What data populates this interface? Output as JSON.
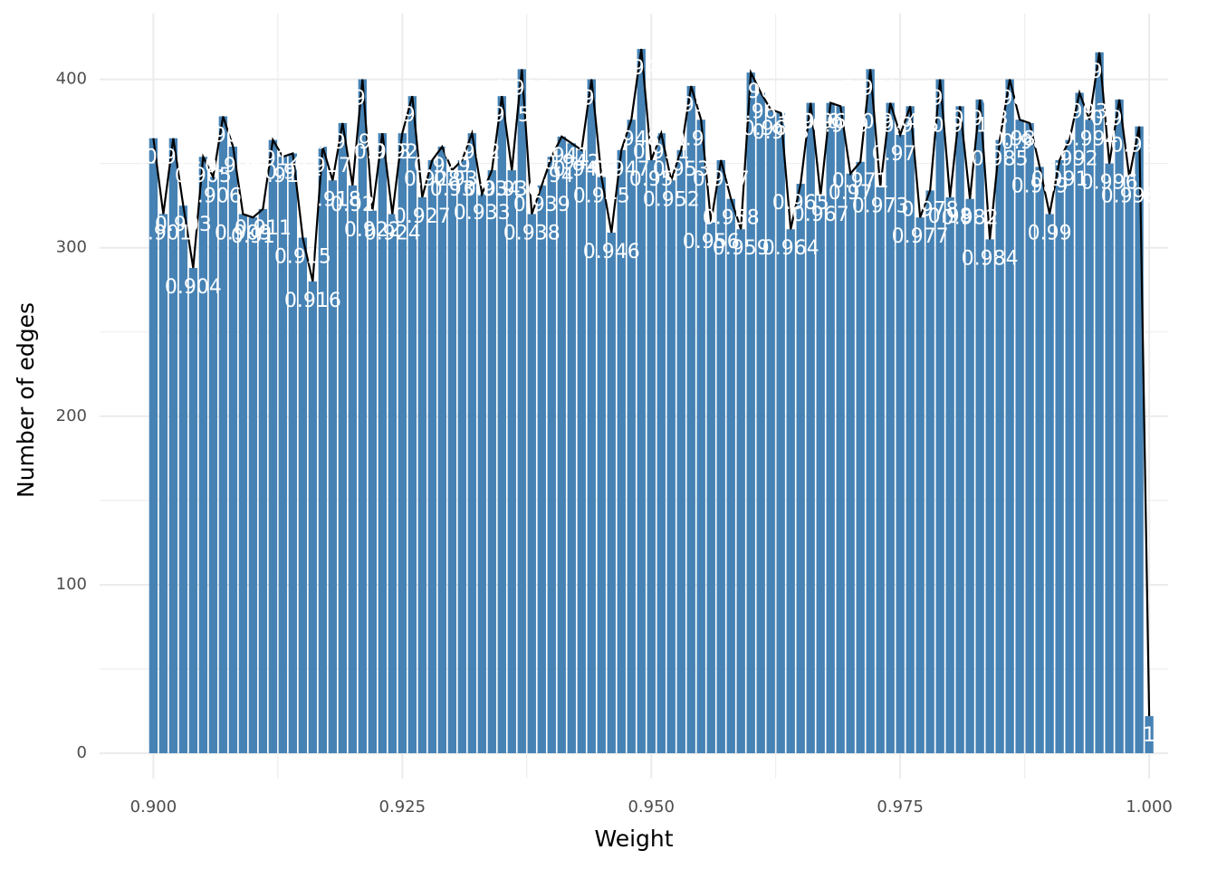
{
  "chart_data": {
    "type": "bar",
    "x_label": "Weight",
    "y_label": "Number of edges",
    "x": [
      0.9,
      0.901,
      0.902,
      0.903,
      0.904,
      0.905,
      0.906,
      0.907,
      0.908,
      0.909,
      0.91,
      0.911,
      0.912,
      0.913,
      0.914,
      0.915,
      0.916,
      0.917,
      0.918,
      0.919,
      0.92,
      0.921,
      0.922,
      0.923,
      0.924,
      0.925,
      0.926,
      0.927,
      0.928,
      0.929,
      0.93,
      0.931,
      0.932,
      0.933,
      0.934,
      0.935,
      0.936,
      0.937,
      0.938,
      0.939,
      0.94,
      0.941,
      0.942,
      0.943,
      0.944,
      0.945,
      0.946,
      0.947,
      0.948,
      0.949,
      0.95,
      0.951,
      0.952,
      0.953,
      0.954,
      0.955,
      0.956,
      0.957,
      0.958,
      0.959,
      0.96,
      0.961,
      0.962,
      0.963,
      0.964,
      0.965,
      0.966,
      0.967,
      0.968,
      0.969,
      0.97,
      0.971,
      0.972,
      0.973,
      0.974,
      0.975,
      0.976,
      0.977,
      0.978,
      0.979,
      0.98,
      0.981,
      0.982,
      0.983,
      0.984,
      0.985,
      0.986,
      0.987,
      0.988,
      0.989,
      0.99,
      0.991,
      0.992,
      0.993,
      0.994,
      0.995,
      0.996,
      0.997,
      0.998,
      0.999,
      1
    ],
    "values": [
      365,
      320,
      365,
      325,
      288,
      354,
      342,
      378,
      360,
      320,
      318,
      323,
      364,
      354,
      356,
      306,
      280,
      360,
      340,
      374,
      337,
      400,
      322,
      368,
      320,
      368,
      390,
      330,
      352,
      360,
      346,
      352,
      368,
      332,
      346,
      390,
      346,
      406,
      320,
      337,
      354,
      366,
      362,
      358,
      400,
      342,
      309,
      358,
      376,
      418,
      352,
      368,
      340,
      358,
      396,
      376,
      315,
      352,
      329,
      311,
      404,
      392,
      382,
      380,
      311,
      338,
      386,
      331,
      386,
      384,
      344,
      351,
      406,
      336,
      386,
      367,
      384,
      318,
      334,
      400,
      330,
      384,
      329,
      388,
      305,
      364,
      400,
      376,
      374,
      348,
      320,
      352,
      364,
      392,
      376,
      416,
      350,
      388,
      342,
      372,
      22
    ],
    "point_labels": [
      "0.9",
      "0.901",
      "0.902",
      "0.903",
      "0.904",
      "0.905",
      "0.906",
      "0.907",
      "0.908",
      "0.909",
      "0.91",
      "0.911",
      "0.912",
      "0.913",
      "0.914",
      "0.915",
      "0.916",
      "0.917",
      "0.918",
      "0.919",
      "0.92",
      "0.921",
      "0.922",
      "0.923",
      "0.924",
      "0.925",
      "0.926",
      "0.927",
      "0.928",
      "0.929",
      "0.93",
      "0.931",
      "0.932",
      "0.933",
      "0.934",
      "0.935",
      "0.936",
      "0.937",
      "0.938",
      "0.939",
      "0.94",
      "0.941",
      "0.942",
      "0.943",
      "0.944",
      "0.945",
      "0.946",
      "0.947",
      "0.948",
      "0.949",
      "0.95",
      "0.951",
      "0.952",
      "0.953",
      "0.954",
      "0.955",
      "0.956",
      "0.957",
      "0.958",
      "0.959",
      "0.96",
      "0.961",
      "0.962",
      "0.963",
      "0.964",
      "0.965",
      "0.966",
      "0.967",
      "0.968",
      "0.969",
      "0.97",
      "0.971",
      "0.972",
      "0.973",
      "0.974",
      "0.975",
      "0.976",
      "0.977",
      "0.978",
      "0.979",
      "0.98",
      "0.981",
      "0.982",
      "0.983",
      "0.984",
      "0.985",
      "0.986",
      "0.987",
      "0.988",
      "0.989",
      "0.99",
      "0.991",
      "0.992",
      "0.993",
      "0.994",
      "0.995",
      "0.996",
      "0.997",
      "0.998",
      "0.999",
      "1"
    ],
    "color": "#4682b4",
    "line_color": "#000000",
    "xlim": [
      0.8946,
      1.0019
    ],
    "ylim": [
      -15,
      439
    ],
    "xticks": [
      {
        "value": 0.9,
        "label": "0.900"
      },
      {
        "value": 0.925,
        "label": "0.925"
      },
      {
        "value": 0.95,
        "label": "0.950"
      },
      {
        "value": 0.975,
        "label": "0.975"
      },
      {
        "value": 1,
        "label": "1.000"
      }
    ],
    "yticks": [
      0,
      100,
      200,
      300,
      400
    ],
    "grid": true,
    "minor_grid": true
  }
}
